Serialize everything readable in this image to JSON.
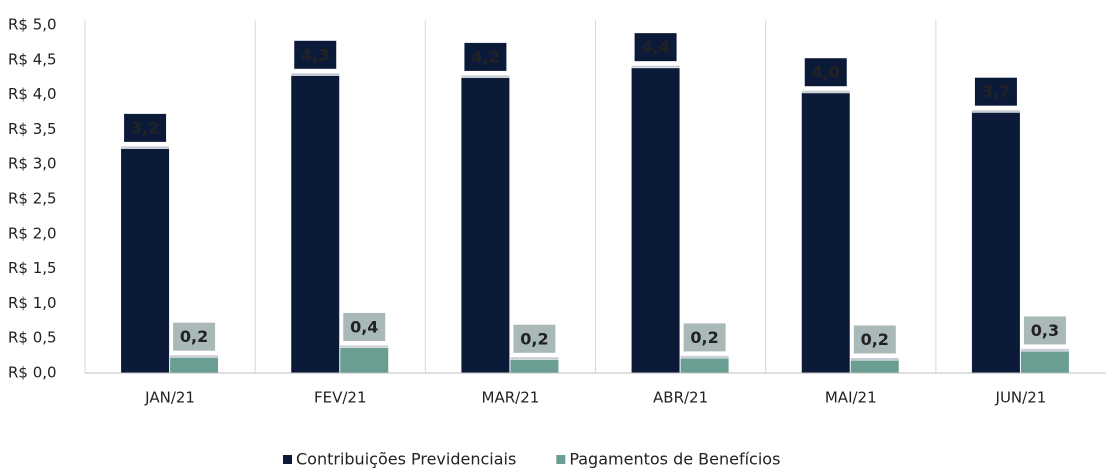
{
  "chart_data": {
    "type": "bar",
    "categories": [
      "JAN/21",
      "FEV/21",
      "MAR/21",
      "ABR/21",
      "MAI/21",
      "JUN/21"
    ],
    "series": [
      {
        "name": "Contribuições Previdenciais",
        "color": "#0c1a3a",
        "values": [
          3.22,
          4.27,
          4.24,
          4.38,
          4.02,
          3.74
        ],
        "value_labels": [
          "3,2",
          "4,3",
          "4,2",
          "4,4",
          "4,0",
          "3,7"
        ]
      },
      {
        "name": "Pagamentos de Benefícios",
        "color": "#6b9e93",
        "values": [
          0.22,
          0.36,
          0.19,
          0.21,
          0.18,
          0.31
        ],
        "value_labels": [
          "0,2",
          "0,4",
          "0,2",
          "0,2",
          "0,2",
          "0,3"
        ]
      }
    ],
    "ylim": [
      0,
      5
    ],
    "yticks": [
      {
        "value": 0,
        "label": "R$ 0,0"
      },
      {
        "value": 0.5,
        "label": "R$ 0,5"
      },
      {
        "value": 1,
        "label": "R$ 1,0"
      },
      {
        "value": 1.5,
        "label": "R$ 1,5"
      },
      {
        "value": 2,
        "label": "R$ 2,0"
      },
      {
        "value": 2.5,
        "label": "R$ 2,5"
      },
      {
        "value": 3,
        "label": "R$ 3,0"
      },
      {
        "value": 3.5,
        "label": "R$ 3,5"
      },
      {
        "value": 4,
        "label": "R$ 4,0"
      },
      {
        "value": 4.5,
        "label": "R$ 4,5"
      },
      {
        "value": 5,
        "label": "R$ 5,0"
      }
    ],
    "legend": "bottom"
  }
}
